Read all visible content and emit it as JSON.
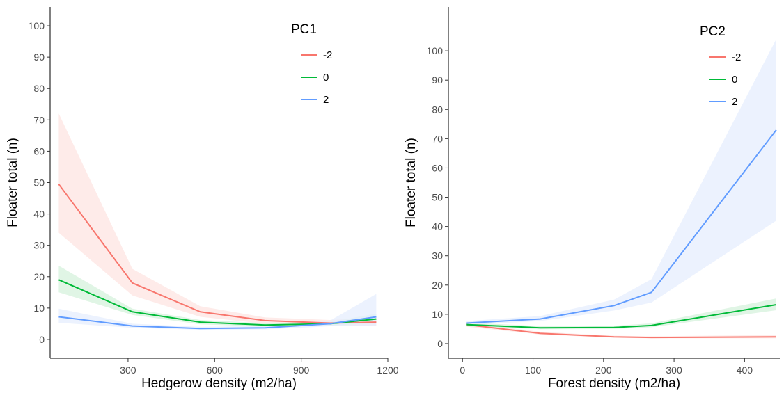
{
  "chart_data": [
    {
      "type": "line",
      "xlabel": "Hedgerow density (m2/ha)",
      "ylabel": "Floater total (n)",
      "xlim": [
        30,
        1200
      ],
      "ylim": [
        -6,
        106
      ],
      "xticks": [
        300,
        600,
        900,
        1200
      ],
      "yticks": [
        0,
        10,
        20,
        30,
        40,
        50,
        60,
        70,
        80,
        90,
        100
      ],
      "legend": {
        "title": "PC1",
        "placement": "top-right"
      },
      "series": [
        {
          "name": "-2",
          "color": "#f8766d",
          "x": [
            60,
            315,
            550,
            775,
            1000,
            1160
          ],
          "y": [
            49.5,
            18.0,
            8.8,
            6.0,
            5.2,
            5.5
          ],
          "lower": [
            34.0,
            14.0,
            7.2,
            5.0,
            4.3,
            4.2
          ],
          "upper": [
            72.0,
            22.5,
            10.6,
            7.0,
            6.2,
            7.2
          ]
        },
        {
          "name": "0",
          "color": "#00ba38",
          "x": [
            60,
            315,
            550,
            775,
            1000,
            1160
          ],
          "y": [
            19.0,
            8.8,
            5.5,
            4.6,
            5.0,
            6.5
          ],
          "lower": [
            15.0,
            7.8,
            4.8,
            4.1,
            4.4,
            5.2
          ],
          "upper": [
            23.5,
            9.8,
            6.2,
            5.2,
            5.6,
            8.2
          ]
        },
        {
          "name": "2",
          "color": "#619cff",
          "x": [
            60,
            315,
            550,
            775,
            1000,
            1160
          ],
          "y": [
            7.2,
            4.3,
            3.5,
            3.7,
            5.0,
            7.2
          ],
          "lower": [
            5.3,
            3.7,
            3.1,
            3.2,
            4.2,
            4.5
          ],
          "upper": [
            9.8,
            5.0,
            4.0,
            4.3,
            6.0,
            14.5
          ]
        }
      ]
    },
    {
      "type": "line",
      "xlabel": "Forest density (m2/ha)",
      "ylabel": "Floater total (n)",
      "xlim": [
        -20,
        450
      ],
      "ylim": [
        -5,
        115
      ],
      "xticks": [
        0,
        100,
        200,
        300,
        400
      ],
      "yticks": [
        0,
        10,
        20,
        30,
        40,
        50,
        60,
        70,
        80,
        90,
        100
      ],
      "legend": {
        "title": "PC2",
        "placement": "top-right"
      },
      "series": [
        {
          "name": "-2",
          "color": "#f8766d",
          "x": [
            5,
            110,
            215,
            268,
            445
          ],
          "y": [
            6.5,
            3.5,
            2.3,
            2.1,
            2.3
          ],
          "lower": [
            5.8,
            3.1,
            2.0,
            1.8,
            1.8
          ],
          "upper": [
            7.3,
            4.0,
            2.7,
            2.5,
            2.9
          ]
        },
        {
          "name": "0",
          "color": "#00ba38",
          "x": [
            5,
            110,
            215,
            268,
            445
          ],
          "y": [
            6.5,
            5.4,
            5.5,
            6.2,
            13.3
          ],
          "lower": [
            5.9,
            4.9,
            5.0,
            5.6,
            11.4
          ],
          "upper": [
            7.2,
            6.0,
            6.1,
            6.9,
            15.4
          ]
        },
        {
          "name": "2",
          "color": "#619cff",
          "x": [
            5,
            110,
            215,
            268,
            445
          ],
          "y": [
            7.0,
            8.4,
            13.0,
            17.5,
            73.0
          ],
          "lower": [
            6.4,
            7.7,
            11.3,
            14.0,
            42.0
          ],
          "upper": [
            7.7,
            9.4,
            15.0,
            22.0,
            104.0
          ]
        }
      ]
    }
  ]
}
